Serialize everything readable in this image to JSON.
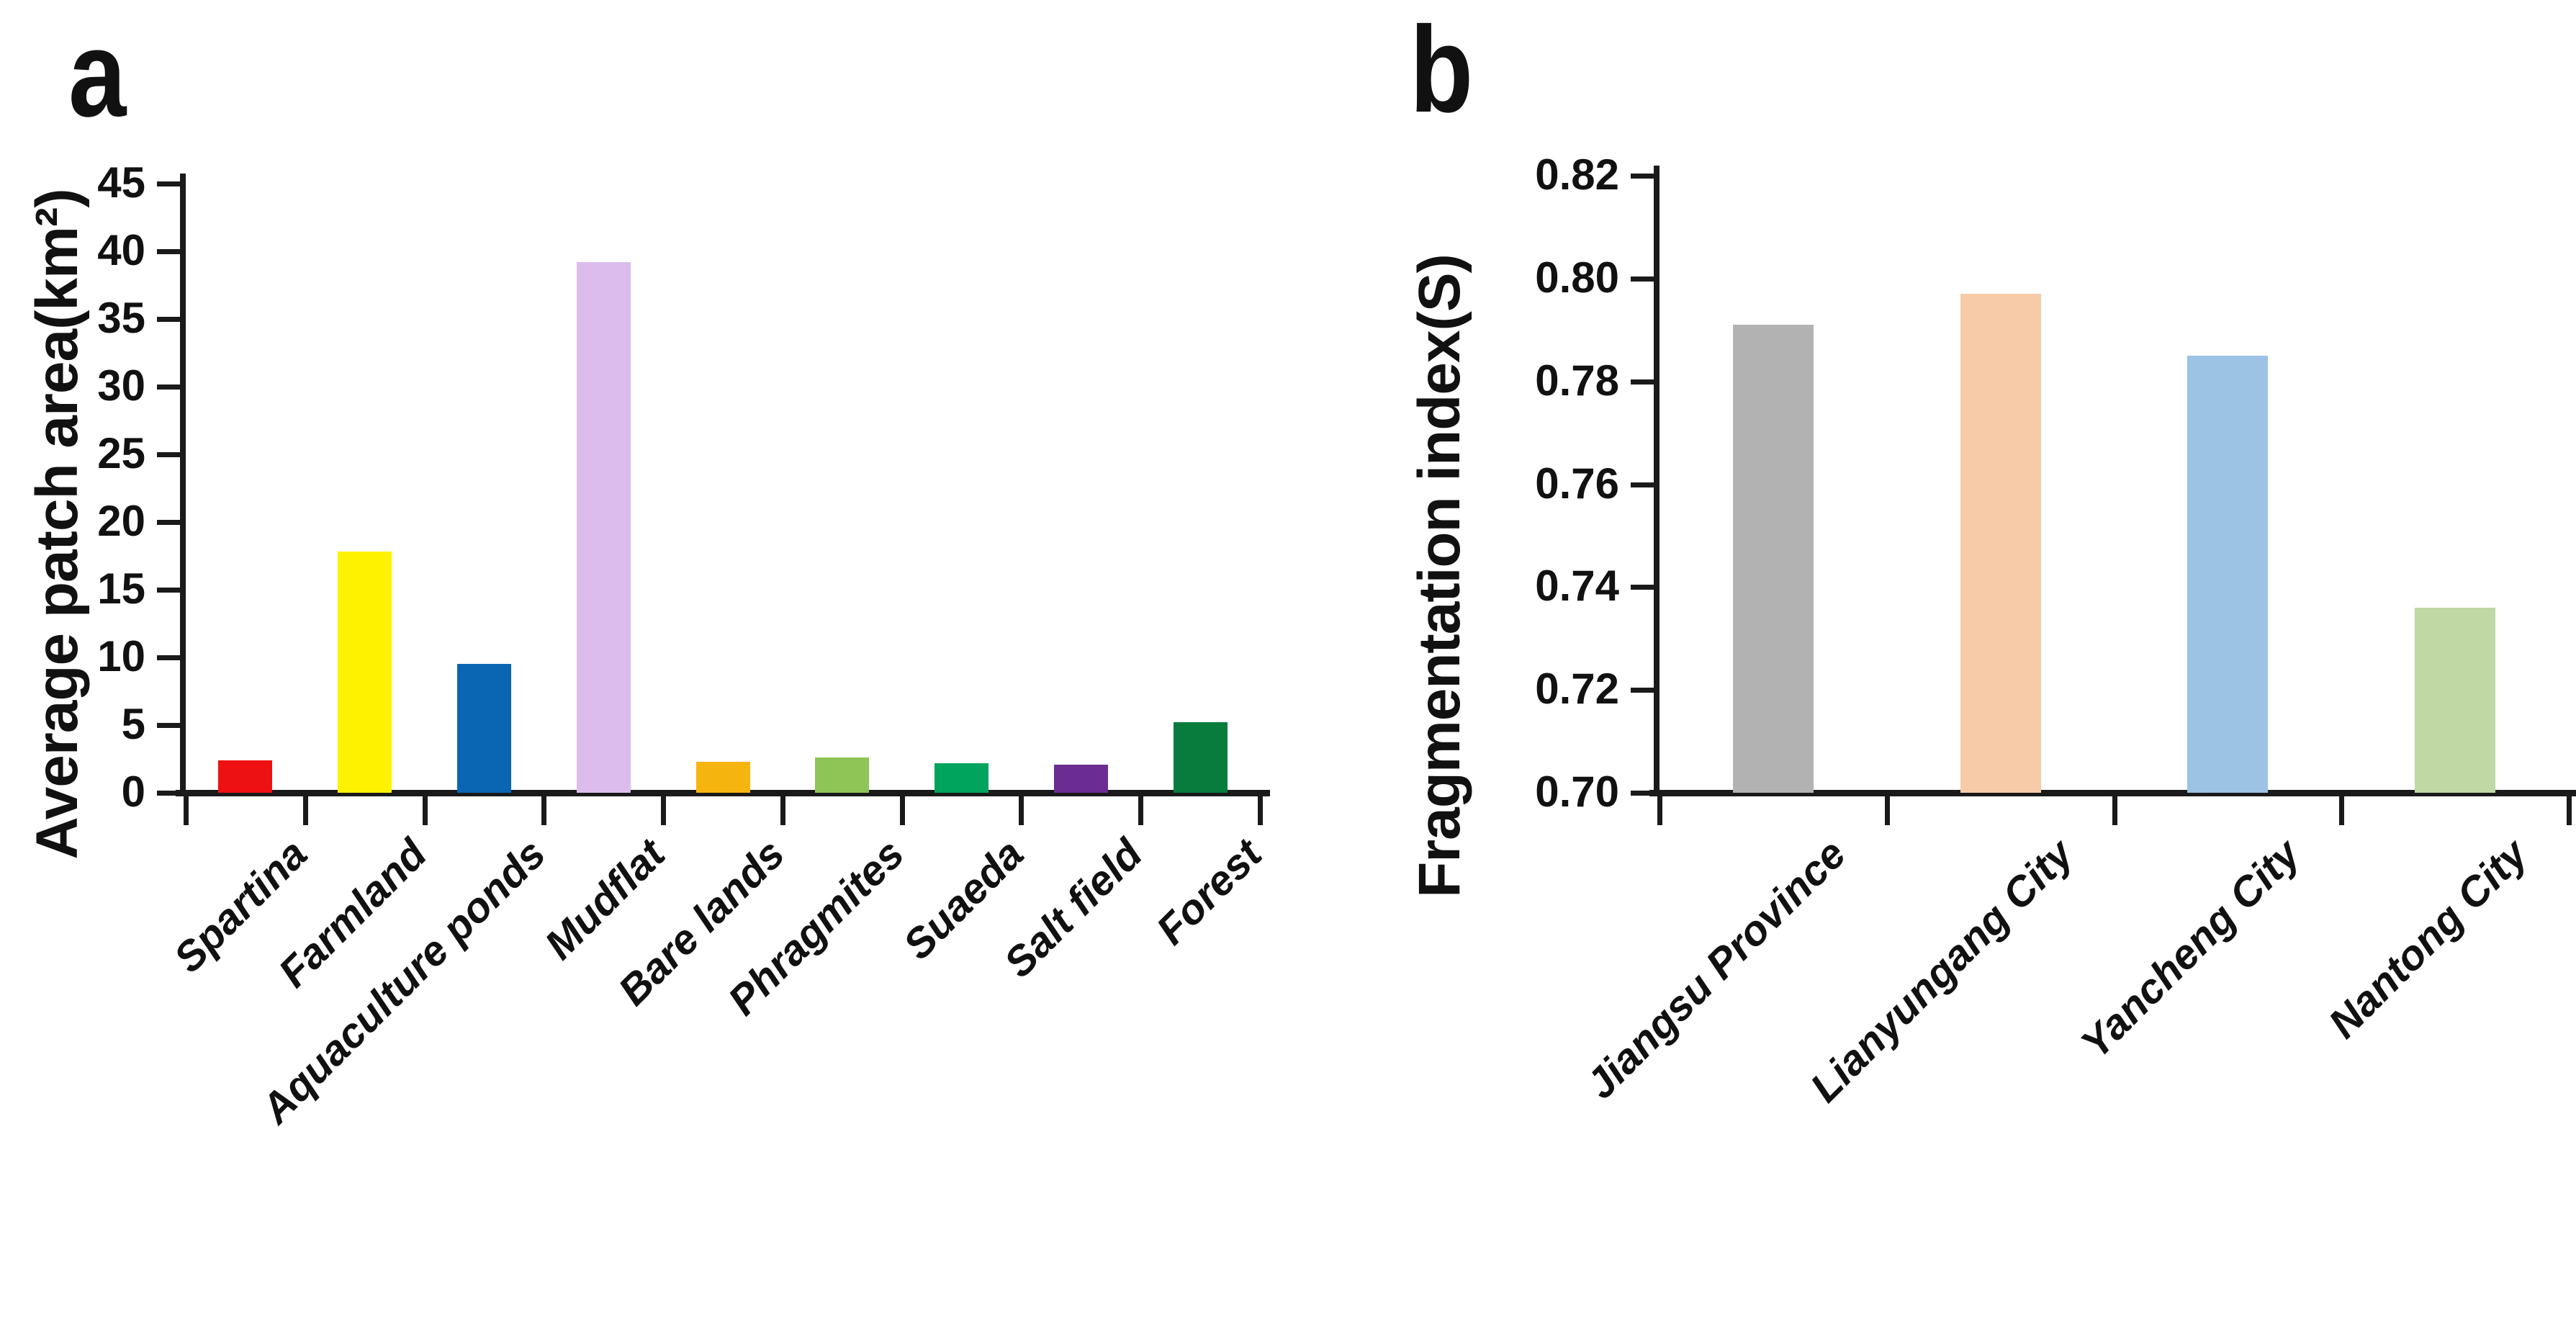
{
  "figure": {
    "background": "#ffffff",
    "axis_color": "#1a1a1a",
    "text_color": "#111111"
  },
  "chart_data": [
    {
      "type": "bar",
      "panel_label": "a",
      "title": "",
      "xlabel": "",
      "ylabel": "Average patch area(km²)",
      "categories": [
        "Spartina",
        "Farmland",
        "Aquaculture ponds",
        "Mudflat",
        "Bare lands",
        "Phragmites",
        "Suaeda",
        "Salt field",
        "Forest"
      ],
      "values": [
        2.4,
        17.8,
        9.5,
        39.2,
        2.3,
        2.6,
        2.2,
        2.1,
        5.2
      ],
      "bar_colors": [
        "#ee1113",
        "#fff200",
        "#0a66b2",
        "#dcbcec",
        "#f6b40e",
        "#8fc556",
        "#00a45c",
        "#6b2d91",
        "#077c3d"
      ],
      "ylim": [
        0,
        45
      ],
      "ytick_step": 5,
      "ytick_labels": [
        "0",
        "5",
        "10",
        "15",
        "20",
        "25",
        "30",
        "35",
        "40",
        "45"
      ],
      "grid": false,
      "legend": "none"
    },
    {
      "type": "bar",
      "panel_label": "b",
      "title": "",
      "xlabel": "",
      "ylabel": "Fragmentation index(S)",
      "categories": [
        "Jiangsu Province",
        "Lianyungang City",
        "Yancheng City",
        "Nantong City"
      ],
      "values": [
        0.791,
        0.797,
        0.785,
        0.736
      ],
      "bar_colors": [
        "#b2b2b2",
        "#f7cba8",
        "#9cc2e4",
        "#bfd8a4"
      ],
      "ylim": [
        0.7,
        0.82
      ],
      "ytick_step": 0.02,
      "ytick_labels": [
        "0.70",
        "0.72",
        "0.74",
        "0.76",
        "0.78",
        "0.80",
        "0.82"
      ],
      "grid": false,
      "legend": "none"
    }
  ]
}
